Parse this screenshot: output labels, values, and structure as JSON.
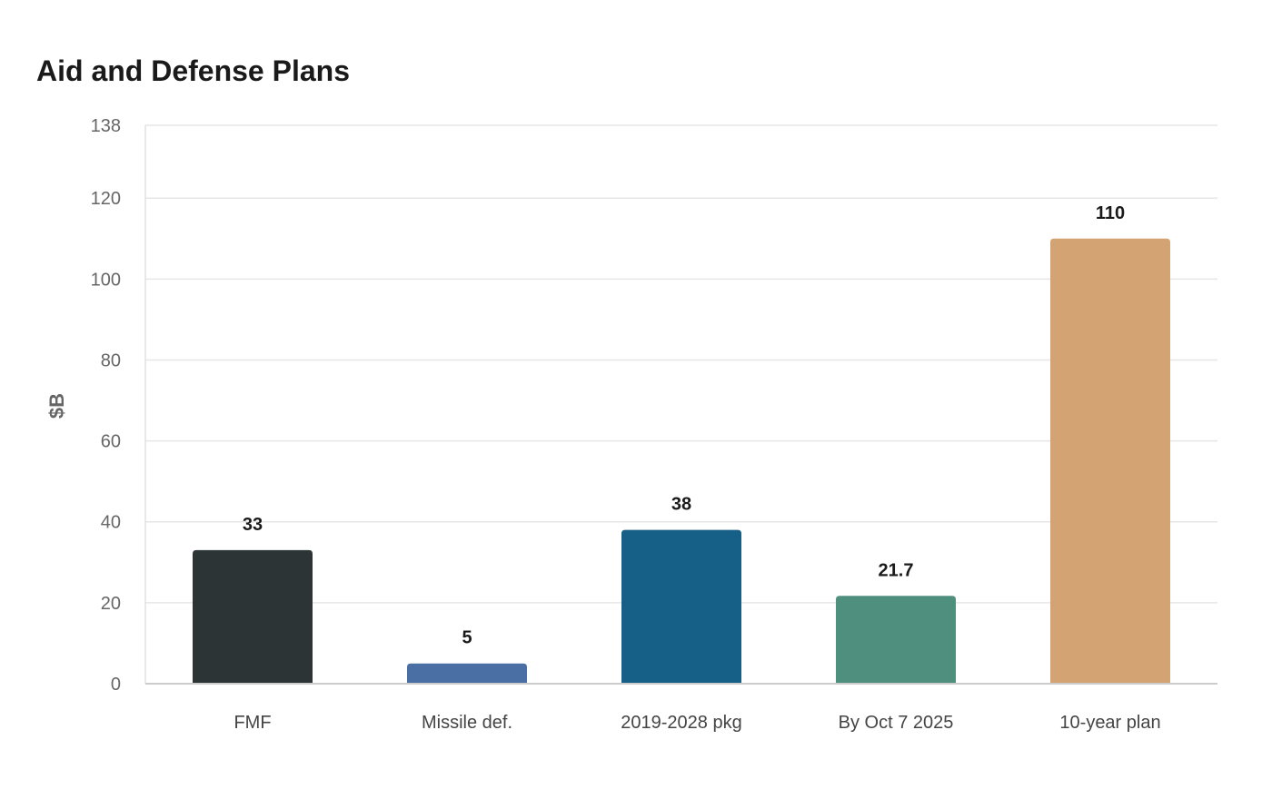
{
  "chart_data": {
    "type": "bar",
    "title": "Aid and Defense Plans",
    "xlabel": "",
    "ylabel": "$B",
    "categories": [
      "FMF",
      "Missile def.",
      "2019-2028 pkg",
      "By Oct 7 2025",
      "10-year plan"
    ],
    "values": [
      33,
      5,
      38,
      21.7,
      110
    ],
    "value_labels": [
      "33",
      "5",
      "38",
      "21.7",
      "110"
    ],
    "ylim": [
      0,
      138
    ],
    "yticks": [
      0,
      20,
      40,
      60,
      80,
      100,
      120,
      138
    ],
    "colors": [
      "#2d3436",
      "#4a6fa5",
      "#166088",
      "#4f8f7d",
      "#d4a373"
    ],
    "grid": true,
    "legend": "none"
  }
}
